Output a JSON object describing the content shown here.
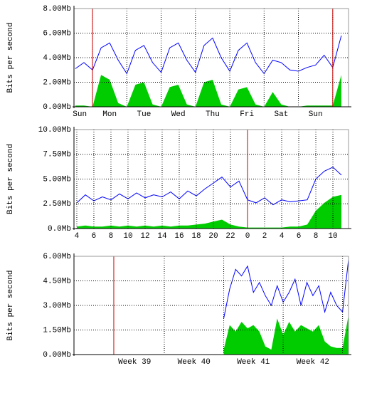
{
  "chart_data": [
    {
      "type": "line",
      "ylabel": "Bits per second",
      "x": [
        -0.5,
        -0.25,
        0,
        0.25,
        0.5,
        0.75,
        1,
        1.25,
        1.5,
        1.75,
        2,
        2.25,
        2.5,
        2.75,
        3,
        3.25,
        3.5,
        3.75,
        4,
        4.25,
        4.5,
        4.75,
        5,
        5.25,
        5.5,
        5.75,
        6,
        6.25,
        6.5,
        6.75,
        7,
        7.25
      ],
      "series": [
        {
          "color": "#00cc00",
          "style": "area",
          "values": [
            0.1,
            0.1,
            0.0,
            2.6,
            2.2,
            0.3,
            0.0,
            1.8,
            2.0,
            0.2,
            0.0,
            1.6,
            1.8,
            0.2,
            0.0,
            2.0,
            2.2,
            0.2,
            0.0,
            1.4,
            1.6,
            0.2,
            0.0,
            1.2,
            0.2,
            0.0,
            0.0,
            0.1,
            0.1,
            0.1,
            0.1,
            2.6
          ]
        },
        {
          "color": "#0000ff",
          "style": "line",
          "values": [
            3.1,
            3.6,
            3.0,
            4.8,
            5.2,
            3.8,
            2.7,
            4.6,
            5.0,
            3.6,
            2.8,
            4.8,
            5.2,
            3.8,
            2.8,
            5.0,
            5.6,
            4.0,
            2.9,
            4.6,
            5.2,
            3.6,
            2.7,
            3.8,
            3.6,
            3.0,
            2.9,
            3.2,
            3.4,
            4.2,
            3.2,
            5.8
          ]
        }
      ],
      "xlim": [
        -0.54,
        7.46
      ],
      "xticks": [
        {
          "value": -0.37,
          "label": "Sun"
        },
        {
          "value": 0.5,
          "label": "Mon"
        },
        {
          "value": 1.5,
          "label": "Tue"
        },
        {
          "value": 2.5,
          "label": "Wed"
        },
        {
          "value": 3.5,
          "label": "Thu"
        },
        {
          "value": 4.5,
          "label": "Fri"
        },
        {
          "value": 5.5,
          "label": "Sat"
        },
        {
          "value": 6.5,
          "label": "Sun"
        }
      ],
      "xgrid": [
        0,
        1,
        2,
        3,
        4,
        5,
        6,
        7
      ],
      "vlines": [
        0,
        7
      ],
      "vline_color": "#cc0000",
      "ylim": [
        0,
        8
      ],
      "yticks": [
        {
          "value": 0,
          "label": "0.00Mb"
        },
        {
          "value": 2,
          "label": "2.00Mb"
        },
        {
          "value": 4,
          "label": "4.00Mb"
        },
        {
          "value": 6,
          "label": "6.00Mb"
        },
        {
          "value": 8,
          "label": "8.00Mb"
        }
      ],
      "grid": true
    },
    {
      "type": "line",
      "ylabel": "Bits per second",
      "x": [
        4,
        5,
        6,
        7,
        8,
        9,
        10,
        11,
        12,
        13,
        14,
        15,
        16,
        17,
        18,
        19,
        20,
        21,
        22,
        23,
        24,
        25,
        26,
        27,
        28,
        29,
        30,
        31,
        32,
        33,
        34,
        35
      ],
      "series": [
        {
          "color": "#00cc00",
          "style": "area",
          "values": [
            0.2,
            0.3,
            0.2,
            0.2,
            0.3,
            0.2,
            0.3,
            0.2,
            0.3,
            0.2,
            0.3,
            0.2,
            0.3,
            0.3,
            0.4,
            0.5,
            0.7,
            0.9,
            0.4,
            0.2,
            0.1,
            0.1,
            0.1,
            0.1,
            0.1,
            0.2,
            0.2,
            0.4,
            1.8,
            2.6,
            3.2,
            3.4
          ]
        },
        {
          "color": "#0000ff",
          "style": "line",
          "values": [
            2.6,
            3.4,
            2.8,
            3.2,
            2.9,
            3.5,
            3.0,
            3.6,
            3.1,
            3.4,
            3.2,
            3.7,
            3.0,
            3.8,
            3.3,
            4.0,
            4.6,
            5.2,
            4.2,
            4.8,
            2.9,
            2.6,
            3.1,
            2.4,
            2.9,
            2.7,
            2.8,
            2.9,
            5.0,
            5.8,
            6.2,
            5.4
          ]
        }
      ],
      "xlim": [
        3.67,
        35.83
      ],
      "xticks": [
        4,
        6,
        8,
        10,
        12,
        14,
        16,
        18,
        20,
        22,
        {
          "value": 24,
          "label": "0"
        },
        {
          "value": 26,
          "label": "2"
        },
        {
          "value": 28,
          "label": "4"
        },
        {
          "value": 30,
          "label": "6"
        },
        {
          "value": 32,
          "label": "8"
        },
        {
          "value": 34,
          "label": "10"
        }
      ],
      "vlines": [
        24
      ],
      "vline_color": "#cc0000",
      "ylim": [
        0,
        10
      ],
      "yticks": [
        {
          "value": 0,
          "label": "0.0Mb"
        },
        {
          "value": 2.5,
          "label": "2.50Mb"
        },
        {
          "value": 5,
          "label": "5.00Mb"
        },
        {
          "value": 7.5,
          "label": "7.50Mb"
        },
        {
          "value": 10,
          "label": "10.00Mb"
        }
      ],
      "grid": true
    },
    {
      "type": "line",
      "ylabel": "Bits per second",
      "x": [
        40.5,
        40.6,
        40.7,
        40.8,
        40.9,
        41.0,
        41.1,
        41.2,
        41.3,
        41.4,
        41.5,
        41.6,
        41.7,
        41.8,
        41.9,
        42.0,
        42.1,
        42.2,
        42.3,
        42.4,
        42.5,
        42.6
      ],
      "series": [
        {
          "color": "#00cc00",
          "style": "area",
          "values": [
            0.3,
            1.8,
            1.4,
            2.0,
            1.6,
            1.8,
            1.4,
            0.5,
            0.3,
            2.2,
            1.2,
            2.0,
            1.4,
            1.8,
            1.6,
            1.4,
            1.8,
            0.8,
            0.5,
            0.4,
            0.4,
            2.4
          ]
        },
        {
          "color": "#0000ff",
          "style": "line",
          "values": [
            2.2,
            4.0,
            5.2,
            4.8,
            5.4,
            3.8,
            4.4,
            3.6,
            3.0,
            4.2,
            3.2,
            3.8,
            4.6,
            3.0,
            4.4,
            3.6,
            4.2,
            2.6,
            3.8,
            3.0,
            2.6,
            5.8
          ]
        }
      ],
      "xlim": [
        37.98,
        42.6
      ],
      "xticks": [
        {
          "value": 39,
          "label": "Week 39"
        },
        {
          "value": 40,
          "label": "Week 40"
        },
        {
          "value": 41,
          "label": "Week 41"
        },
        {
          "value": 42,
          "label": "Week 42"
        }
      ],
      "xgrid": [
        39.5,
        40.5,
        41.5,
        42.5
      ],
      "vlines": [
        38.65
      ],
      "vline_color": "#cc0000",
      "ylim": [
        0,
        6
      ],
      "yticks": [
        {
          "value": 0,
          "label": "0.00Mb"
        },
        {
          "value": 1.5,
          "label": "1.50Mb"
        },
        {
          "value": 3,
          "label": "3.00Mb"
        },
        {
          "value": 4.5,
          "label": "4.50Mb"
        },
        {
          "value": 6,
          "label": "6.00Mb"
        }
      ],
      "grid": true
    }
  ]
}
